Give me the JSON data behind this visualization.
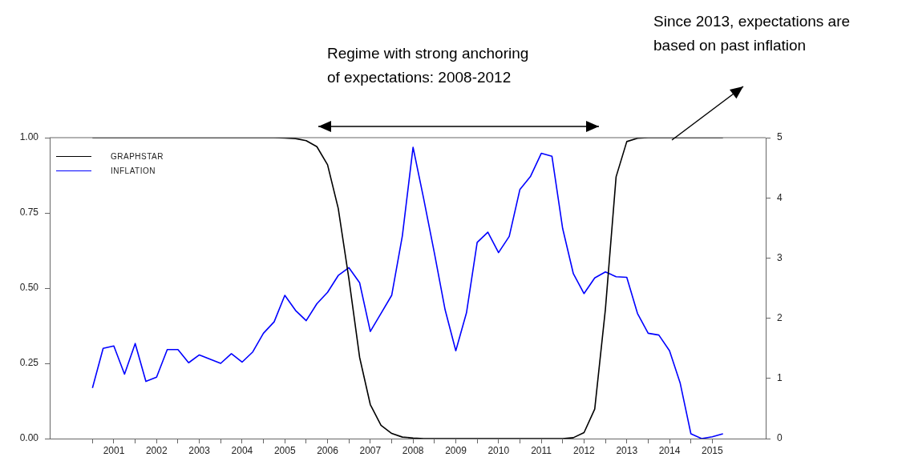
{
  "chart_data": {
    "type": "line",
    "x": [
      2001,
      2001.25,
      2001.5,
      2001.75,
      2002,
      2002.25,
      2002.5,
      2002.75,
      2003,
      2003.25,
      2003.5,
      2003.75,
      2004,
      2004.25,
      2004.5,
      2004.75,
      2005,
      2005.25,
      2005.5,
      2005.75,
      2006,
      2006.25,
      2006.5,
      2006.75,
      2007,
      2007.25,
      2007.5,
      2007.75,
      2008,
      2008.25,
      2008.5,
      2008.75,
      2009,
      2009.25,
      2009.5,
      2009.75,
      2010,
      2010.25,
      2010.5,
      2010.75,
      2011,
      2011.25,
      2011.5,
      2011.75,
      2012,
      2012.25,
      2012.5,
      2012.75,
      2013,
      2013.25,
      2013.5,
      2013.75,
      2014,
      2014.25,
      2014.5,
      2014.75,
      2015,
      2015.25,
      2015.5,
      2015.75
    ],
    "series": [
      {
        "name": "GRAPHSTAR",
        "color": "#000000",
        "values": [
          1,
          1,
          1,
          1,
          1,
          1,
          1,
          1,
          1,
          1,
          1,
          1,
          1,
          1,
          1,
          1,
          1,
          1,
          0.999,
          0.997,
          0.99,
          0.97,
          0.91,
          0.765,
          0.53,
          0.27,
          0.113,
          0.044,
          0.017,
          0.005,
          0.002,
          0,
          0,
          0,
          0,
          0,
          0,
          0,
          0,
          0,
          0,
          0,
          0,
          0,
          0,
          0.003,
          0.02,
          0.098,
          0.43,
          0.87,
          0.987,
          0.998,
          1,
          1,
          1,
          1,
          1,
          1,
          1,
          1
        ]
      },
      {
        "name": "INFLATION",
        "color": "#0000ff",
        "axis": "y2",
        "values": [
          0.84,
          1.5,
          1.54,
          1.07,
          1.58,
          0.95,
          1.02,
          1.48,
          1.48,
          1.26,
          1.39,
          1.32,
          1.25,
          1.41,
          1.27,
          1.44,
          1.75,
          1.94,
          2.38,
          2.13,
          1.96,
          2.24,
          2.43,
          2.71,
          2.84,
          2.59,
          1.78,
          2.08,
          2.38,
          3.37,
          4.84,
          3.98,
          3.08,
          2.14,
          1.46,
          2.09,
          3.26,
          3.43,
          3.09,
          3.36,
          4.14,
          4.36,
          4.74,
          4.69,
          3.49,
          2.74,
          2.41,
          2.67,
          2.77,
          2.69,
          2.68,
          2.08,
          1.75,
          1.72,
          1.46,
          0.92,
          0.08,
          0,
          0.03,
          0.08
        ]
      }
    ],
    "xlim": [
      2000,
      2016.75
    ],
    "xticks": [
      {
        "value": 2001,
        "label": null
      },
      {
        "value": 2001.5,
        "label": "2001"
      },
      {
        "value": 2002,
        "label": null
      },
      {
        "value": 2002.5,
        "label": "2002"
      },
      {
        "value": 2003,
        "label": null
      },
      {
        "value": 2003.5,
        "label": "2003"
      },
      {
        "value": 2004,
        "label": null
      },
      {
        "value": 2004.5,
        "label": "2004"
      },
      {
        "value": 2005,
        "label": null
      },
      {
        "value": 2005.5,
        "label": "2005"
      },
      {
        "value": 2006,
        "label": null
      },
      {
        "value": 2006.5,
        "label": "2006"
      },
      {
        "value": 2007,
        "label": null
      },
      {
        "value": 2007.5,
        "label": "2007"
      },
      {
        "value": 2008,
        "label": null
      },
      {
        "value": 2008.5,
        "label": "2008"
      },
      {
        "value": 2009,
        "label": null
      },
      {
        "value": 2009.5,
        "label": "2009"
      },
      {
        "value": 2010,
        "label": null
      },
      {
        "value": 2010.5,
        "label": "2010"
      },
      {
        "value": 2011,
        "label": null
      },
      {
        "value": 2011.5,
        "label": "2011"
      },
      {
        "value": 2012,
        "label": null
      },
      {
        "value": 2012.5,
        "label": "2012"
      },
      {
        "value": 2013,
        "label": null
      },
      {
        "value": 2013.5,
        "label": "2013"
      },
      {
        "value": 2014,
        "label": null
      },
      {
        "value": 2014.5,
        "label": "2014"
      },
      {
        "value": 2015,
        "label": null
      },
      {
        "value": 2015.5,
        "label": "2015"
      }
    ],
    "ylim": [
      0,
      1
    ],
    "yticks": [
      {
        "value": 0,
        "label": "0.00"
      },
      {
        "value": 0.25,
        "label": "0.25"
      },
      {
        "value": 0.5,
        "label": "0.50"
      },
      {
        "value": 0.75,
        "label": "0.75"
      },
      {
        "value": 1,
        "label": "1.00"
      }
    ],
    "y2lim": [
      0,
      5
    ],
    "y2ticks": [
      0,
      1,
      2,
      3,
      4,
      5
    ],
    "grid": false,
    "legend": "top left",
    "marker": "none",
    "line_style": "solid",
    "annotations": [
      "Regime with strong anchoring of expectations: 2008-2012",
      "Since 2013, expectations are based on past inflation"
    ]
  }
}
